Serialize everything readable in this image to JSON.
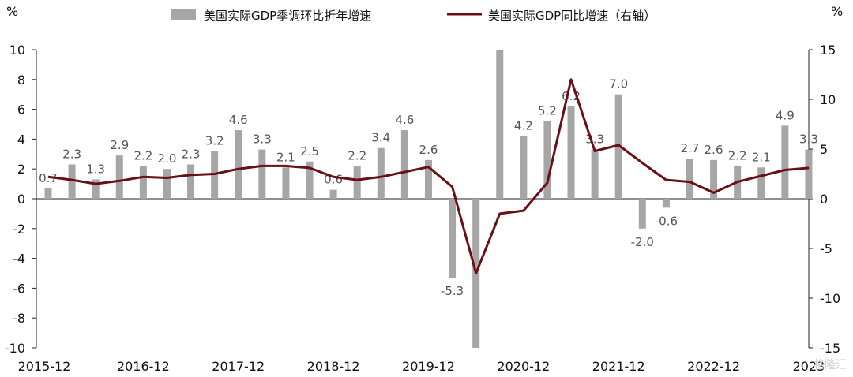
{
  "chart_data": {
    "type": "bar+line",
    "units": {
      "left": "%",
      "right": "%"
    },
    "legend": {
      "bars": "美国实际GDP季调环比折年增速",
      "line": "美国实际GDP同比增速（右轴）"
    },
    "legend_position": "top-center",
    "grid": false,
    "y_left": {
      "min": -10,
      "max": 10,
      "ticks": [
        "10",
        "8",
        "6",
        "4",
        "2",
        "0",
        "-2",
        "-4",
        "-6",
        "-8",
        "-10"
      ]
    },
    "y_right": {
      "min": -15,
      "max": 15,
      "ticks": [
        "15",
        "10",
        "5",
        "0",
        "-5",
        "-10",
        "-15"
      ]
    },
    "x_tick_labels": [
      "2015-12",
      "2016-12",
      "2017-12",
      "2018-12",
      "2019-12",
      "2020-12",
      "2021-12",
      "2022-12",
      "2023"
    ],
    "bar_color": "#a6a6a6",
    "line_color": "#6b0f14",
    "series": [
      {
        "name": "美国实际GDP季调环比折年增速",
        "axis": "left",
        "values": [
          0.7,
          2.3,
          1.3,
          2.9,
          2.2,
          2.0,
          2.3,
          3.2,
          4.6,
          3.3,
          2.1,
          2.5,
          0.6,
          2.2,
          3.4,
          4.6,
          2.6,
          -5.3,
          -10.0,
          10.0,
          4.2,
          5.2,
          6.2,
          3.3,
          7.0,
          -2.0,
          -0.6,
          2.7,
          2.6,
          2.2,
          2.1,
          4.9,
          3.3
        ],
        "labels": [
          "0.7",
          "2.3",
          "1.3",
          "2.9",
          "2.2",
          "2.0",
          "2.3",
          "3.2",
          "4.6",
          "3.3",
          "2.1",
          "2.5",
          "0.6",
          "2.2",
          "3.4",
          "4.6",
          "2.6",
          "-5.3",
          "",
          "",
          "4.2",
          "5.2",
          "6.2",
          "3.3",
          "7.0",
          "-2.0",
          "-0.6",
          "2.7",
          "2.6",
          "2.2",
          "2.1",
          "4.9",
          "3.3"
        ]
      },
      {
        "name": "美国实际GDP同比增速（右轴）",
        "axis": "right",
        "values": [
          2.2,
          1.9,
          1.5,
          1.8,
          2.2,
          2.1,
          2.4,
          2.5,
          3.0,
          3.3,
          3.3,
          3.1,
          2.2,
          1.9,
          2.2,
          2.7,
          3.2,
          1.2,
          -7.5,
          -1.5,
          -1.2,
          1.6,
          12.0,
          4.8,
          5.4,
          3.6,
          1.9,
          1.7,
          0.6,
          1.7,
          2.3,
          2.9,
          3.1
        ]
      }
    ]
  },
  "watermark": "格隆汇"
}
